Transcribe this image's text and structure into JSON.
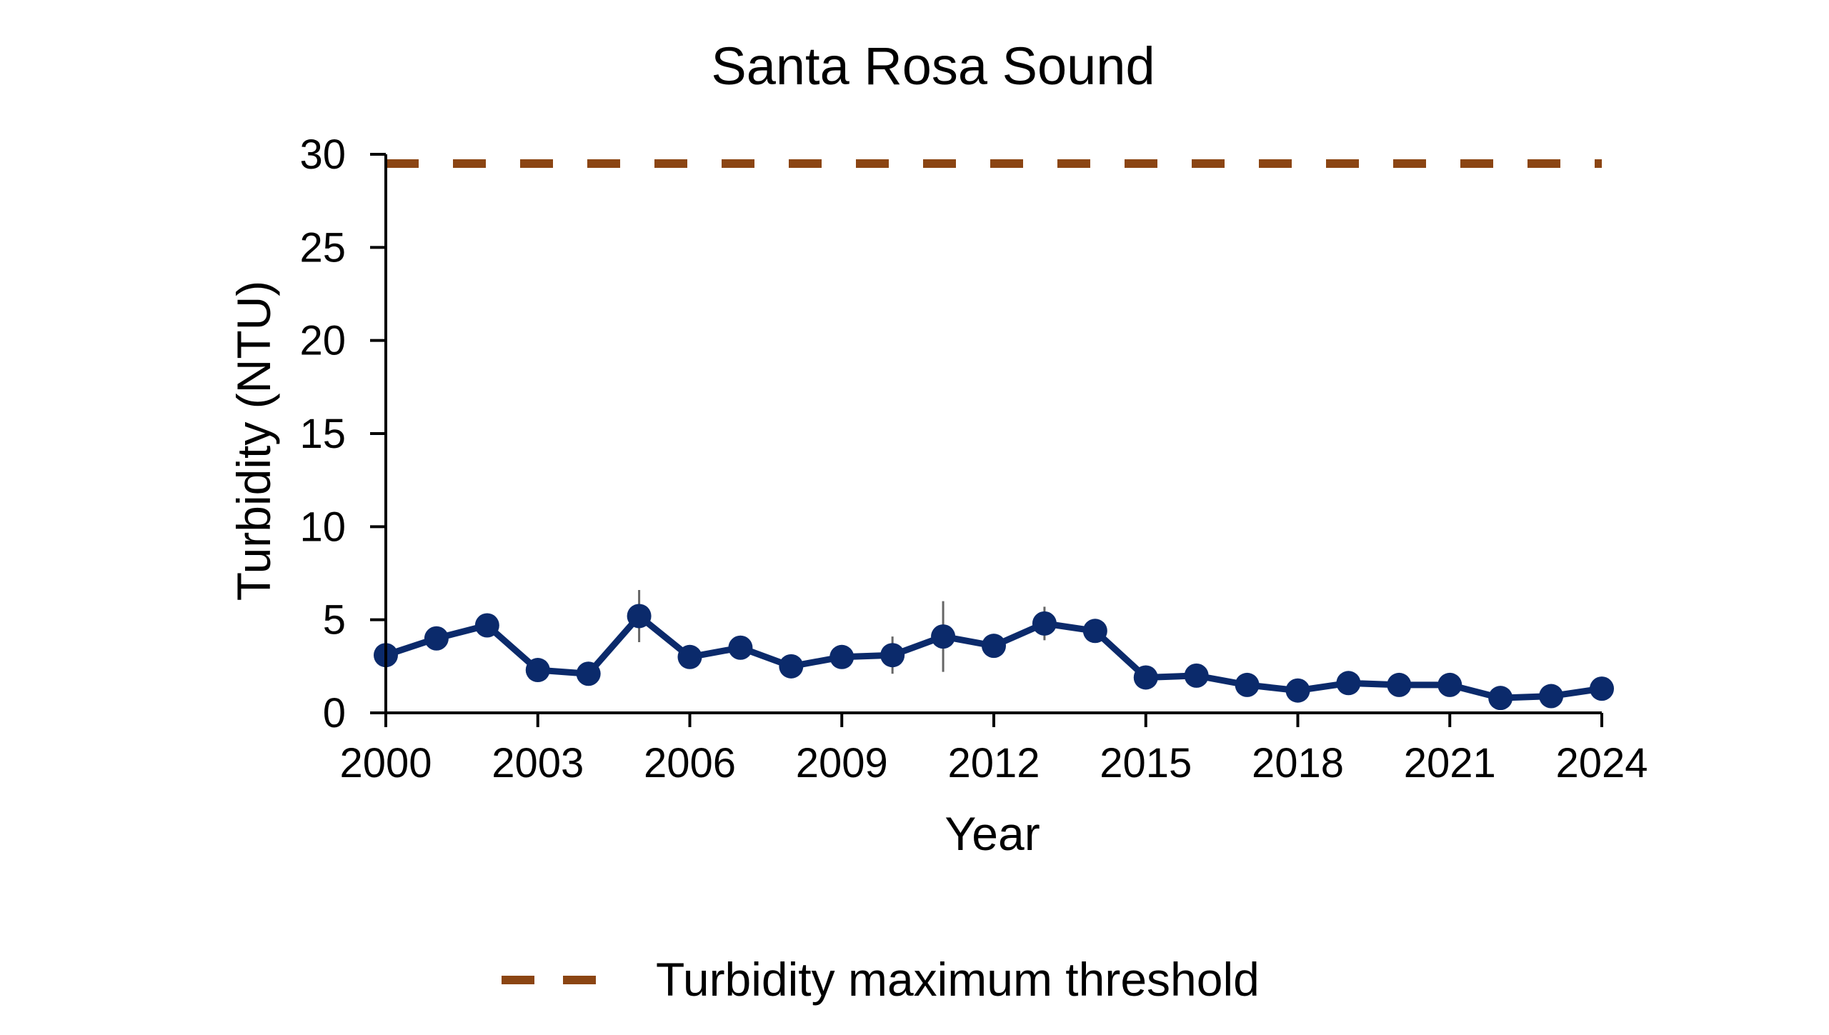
{
  "chart_data": {
    "type": "line",
    "title": "Santa Rosa Sound",
    "xlabel": "Year",
    "ylabel": "Turbidity (NTU)",
    "xlim": [
      2000,
      2024
    ],
    "ylim": [
      0,
      30
    ],
    "x_ticks": [
      2000,
      2003,
      2006,
      2009,
      2012,
      2015,
      2018,
      2021,
      2024
    ],
    "y_ticks": [
      0,
      5,
      10,
      15,
      20,
      25,
      30
    ],
    "grid": false,
    "legend_position": "bottom-center",
    "series": [
      {
        "color": "#0b2a6b",
        "x": [
          2000,
          2001,
          2002,
          2003,
          2004,
          2005,
          2006,
          2007,
          2008,
          2009,
          2010,
          2011,
          2012,
          2013,
          2014,
          2015,
          2016,
          2017,
          2018,
          2019,
          2020,
          2021,
          2022,
          2023,
          2024
        ],
        "y": [
          3.1,
          4.0,
          4.7,
          2.3,
          2.1,
          5.2,
          3.0,
          3.5,
          2.5,
          3.0,
          3.1,
          4.1,
          3.6,
          4.8,
          4.4,
          1.9,
          2.0,
          1.5,
          1.2,
          1.6,
          1.5,
          1.5,
          0.8,
          0.9,
          1.3
        ],
        "error": [
          0.1,
          0.2,
          0.2,
          0.2,
          0.1,
          1.4,
          0.2,
          0.3,
          0.2,
          0.2,
          1.0,
          1.9,
          0.3,
          0.9,
          0.4,
          0.2,
          0.2,
          0.2,
          0.1,
          0.2,
          0.1,
          0.1,
          0.1,
          0.1,
          0.1
        ]
      }
    ],
    "threshold": {
      "name": "Turbidity maximum threshold",
      "value": 29.5,
      "color": "#8b4513",
      "style": "dashed"
    }
  }
}
